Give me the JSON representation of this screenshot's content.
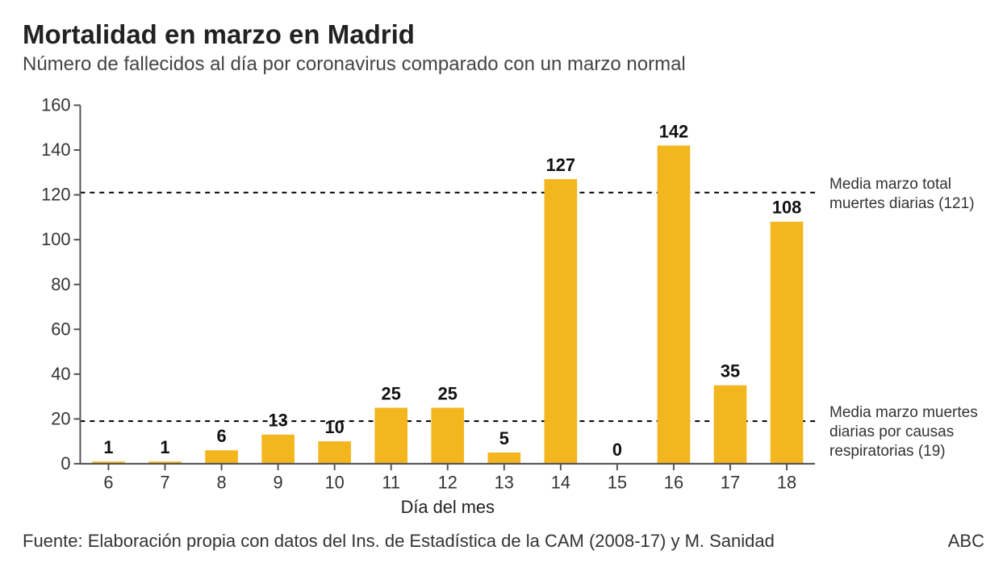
{
  "title": "Mortalidad en marzo en Madrid",
  "subtitle": "Número de fallecidos al día por coronavirus comparado con un marzo normal",
  "source": "Fuente: Elaboración propia con datos del Ins. de Estadística de la CAM (2008-17) y M. Sanidad",
  "brand": "ABC",
  "chart": {
    "type": "bar",
    "x_label": "Día del mes",
    "categories": [
      "6",
      "7",
      "8",
      "9",
      "10",
      "11",
      "12",
      "13",
      "14",
      "15",
      "16",
      "17",
      "18"
    ],
    "values": [
      1,
      1,
      6,
      13,
      10,
      25,
      25,
      5,
      127,
      0,
      142,
      35,
      108
    ],
    "bar_color": "#f3b61f",
    "background": "#ffffff",
    "ylim": [
      0,
      160
    ],
    "ytick_step": 20,
    "bar_width": 0.58,
    "ref_lines": [
      {
        "value": 121,
        "label": "Media marzo total muertes diarias (121)"
      },
      {
        "value": 19,
        "label": "Media marzo muertes diarias por causas respiratorias (19)"
      }
    ],
    "axis_color": "#555555",
    "label_fontsize": 22,
    "value_label_fontsize": 22,
    "value_label_fontweight": 700
  }
}
